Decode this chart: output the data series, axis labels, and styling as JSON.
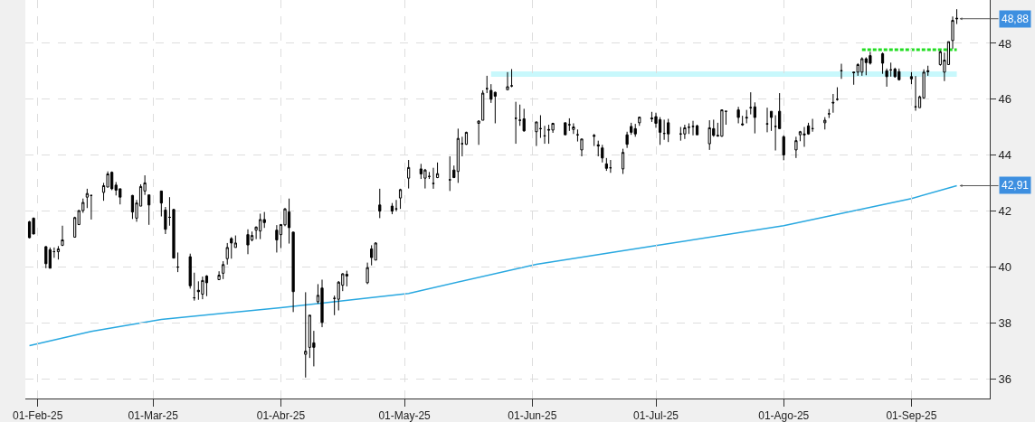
{
  "chart_data": {
    "type": "candlestick",
    "x": [
      "2025-01-30",
      "2025-01-31",
      "2025-02-03",
      "2025-02-04",
      "2025-02-05",
      "2025-02-06",
      "2025-02-07",
      "2025-02-10",
      "2025-02-11",
      "2025-02-12",
      "2025-02-13",
      "2025-02-14",
      "2025-02-17",
      "2025-02-18",
      "2025-02-19",
      "2025-02-20",
      "2025-02-21",
      "2025-02-24",
      "2025-02-25",
      "2025-02-26",
      "2025-02-27",
      "2025-02-28",
      "2025-03-03",
      "2025-03-04",
      "2025-03-05",
      "2025-03-06",
      "2025-03-07",
      "2025-03-10",
      "2025-03-11",
      "2025-03-12",
      "2025-03-13",
      "2025-03-14",
      "2025-03-17",
      "2025-03-18",
      "2025-03-19",
      "2025-03-20",
      "2025-03-21",
      "2025-03-24",
      "2025-03-25",
      "2025-03-26",
      "2025-03-27",
      "2025-03-28",
      "2025-03-31",
      "2025-04-01",
      "2025-04-02",
      "2025-04-03",
      "2025-04-04",
      "2025-04-07",
      "2025-04-08",
      "2025-04-09",
      "2025-04-10",
      "2025-04-11",
      "2025-04-14",
      "2025-04-15",
      "2025-04-16",
      "2025-04-17",
      "2025-04-22",
      "2025-04-23",
      "2025-04-24",
      "2025-04-25",
      "2025-04-28",
      "2025-04-29",
      "2025-04-30",
      "2025-05-02",
      "2025-05-05",
      "2025-05-06",
      "2025-05-07",
      "2025-05-08",
      "2025-05-09",
      "2025-05-12",
      "2025-05-13",
      "2025-05-14",
      "2025-05-15",
      "2025-05-16",
      "2025-05-19",
      "2025-05-20",
      "2025-05-21",
      "2025-05-22",
      "2025-05-23",
      "2025-05-26",
      "2025-05-27",
      "2025-05-28",
      "2025-05-29",
      "2025-05-30",
      "2025-06-02",
      "2025-06-03",
      "2025-06-04",
      "2025-06-05",
      "2025-06-06",
      "2025-06-09",
      "2025-06-10",
      "2025-06-11",
      "2025-06-12",
      "2025-06-13",
      "2025-06-16",
      "2025-06-17",
      "2025-06-18",
      "2025-06-19",
      "2025-06-20",
      "2025-06-23",
      "2025-06-24",
      "2025-06-25",
      "2025-06-26",
      "2025-06-27",
      "2025-06-30",
      "2025-07-01",
      "2025-07-02",
      "2025-07-03",
      "2025-07-04",
      "2025-07-07",
      "2025-07-08",
      "2025-07-09",
      "2025-07-10",
      "2025-07-11",
      "2025-07-14",
      "2025-07-15",
      "2025-07-16",
      "2025-07-17",
      "2025-07-18",
      "2025-07-21",
      "2025-07-22",
      "2025-07-23",
      "2025-07-24",
      "2025-07-25",
      "2025-07-28",
      "2025-07-29",
      "2025-07-30",
      "2025-07-31",
      "2025-08-01",
      "2025-08-04",
      "2025-08-05",
      "2025-08-06",
      "2025-08-07",
      "2025-08-08",
      "2025-08-11",
      "2025-08-12",
      "2025-08-13",
      "2025-08-14",
      "2025-08-15",
      "2025-08-18",
      "2025-08-19",
      "2025-08-20",
      "2025-08-21",
      "2025-08-22",
      "2025-08-25",
      "2025-08-26",
      "2025-08-27",
      "2025-08-28",
      "2025-08-29",
      "2025-09-01",
      "2025-09-02",
      "2025-09-03",
      "2025-09-04",
      "2025-09-05",
      "2025-09-08",
      "2025-09-09",
      "2025-09-10",
      "2025-09-11",
      "2025-09-12"
    ],
    "ohlc": [
      [
        41.62,
        41.65,
        41.03,
        41.05
      ],
      [
        41.75,
        41.77,
        41.18,
        41.18
      ],
      [
        40.73,
        40.75,
        39.96,
        40.12
      ],
      [
        40.62,
        40.7,
        39.96,
        39.96
      ],
      [
        40.55,
        40.7,
        40.33,
        40.55
      ],
      [
        40.55,
        40.75,
        40.27,
        40.65
      ],
      [
        40.78,
        41.48,
        40.75,
        40.97
      ],
      [
        41.07,
        41.8,
        41.05,
        41.77
      ],
      [
        41.52,
        42.04,
        41.5,
        42.02
      ],
      [
        42.02,
        42.45,
        41.94,
        42.31
      ],
      [
        42.5,
        42.8,
        42.11,
        42.63
      ],
      [
        42.56,
        42.58,
        41.7,
        42.56
      ],
      [
        42.67,
        43.01,
        42.37,
        42.91
      ],
      [
        42.86,
        43.42,
        42.86,
        43.33
      ],
      [
        43.39,
        43.42,
        42.75,
        42.8
      ],
      [
        42.93,
        43.04,
        42.56,
        42.75
      ],
      [
        42.8,
        42.8,
        42.24,
        42.5
      ],
      [
        42.56,
        42.58,
        41.72,
        41.97
      ],
      [
        41.75,
        42.4,
        41.62,
        42.29
      ],
      [
        42.18,
        42.96,
        42.18,
        42.88
      ],
      [
        42.72,
        43.28,
        42.58,
        43.01
      ],
      [
        42.58,
        42.58,
        41.51,
        42.22
      ],
      [
        42.72,
        42.72,
        41.81,
        42.29
      ],
      [
        42.04,
        42.15,
        41.18,
        41.35
      ],
      [
        41.78,
        42.5,
        41.48,
        41.78
      ],
      [
        42.06,
        42.08,
        40.32,
        40.32
      ],
      [
        40.0,
        40.52,
        39.82,
        40.0
      ],
      [
        40.37,
        40.48,
        39.23,
        39.33
      ],
      [
        38.9,
        39.8,
        38.8,
        38.9
      ],
      [
        39.17,
        39.49,
        38.83,
        39.12
      ],
      [
        39.03,
        39.66,
        38.85,
        39.52
      ],
      [
        39.68,
        39.71,
        38.96,
        39.44
      ],
      [
        39.55,
        39.85,
        39.55,
        39.71
      ],
      [
        39.78,
        40.21,
        39.57,
        40.09
      ],
      [
        40.3,
        40.86,
        40.09,
        40.7
      ],
      [
        41.02,
        41.07,
        40.3,
        40.86
      ],
      [
        40.7,
        41.13,
        40.7,
        40.86
      ],
      [
        41.16,
        41.35,
        40.46,
        40.79
      ],
      [
        40.97,
        41.27,
        40.92,
        41.13
      ],
      [
        41.32,
        41.45,
        41.0,
        41.43
      ],
      [
        41.29,
        41.91,
        41.0,
        41.7
      ],
      [
        41.7,
        41.97,
        41.4,
        41.59
      ],
      [
        41.32,
        41.5,
        40.52,
        40.97
      ],
      [
        41.16,
        41.54,
        40.68,
        41.52
      ],
      [
        41.51,
        42.11,
        41.46,
        42.08
      ],
      [
        41.97,
        42.45,
        40.84,
        41.41
      ],
      [
        41.25,
        41.25,
        38.39,
        39.12
      ],
      [
        36.88,
        39.1,
        36.05,
        36.99
      ],
      [
        37.13,
        38.28,
        36.75,
        38.28
      ],
      [
        37.29,
        37.72,
        36.45,
        37.13
      ],
      [
        38.76,
        39.39,
        38.69,
        38.99
      ],
      [
        39.25,
        39.55,
        37.85,
        38.02
      ],
      [
        38.88,
        38.98,
        38.28,
        38.88
      ],
      [
        38.85,
        39.5,
        38.45,
        39.46
      ],
      [
        39.35,
        39.78,
        39.14,
        39.76
      ],
      [
        39.74,
        39.87,
        39.31,
        39.68
      ],
      [
        39.44,
        40.16,
        39.39,
        39.98
      ],
      [
        40.65,
        40.78,
        40.06,
        40.34
      ],
      [
        40.25,
        40.89,
        40.25,
        40.86
      ],
      [
        42.22,
        42.8,
        41.75,
        42.0
      ],
      [
        42.18,
        42.29,
        41.89,
        42.0
      ],
      [
        42.08,
        42.4,
        41.99,
        42.08
      ],
      [
        42.47,
        42.8,
        42.08,
        42.77
      ],
      [
        43.18,
        43.83,
        42.81,
        43.56
      ],
      [
        43.51,
        43.69,
        43.15,
        43.33
      ],
      [
        43.18,
        43.51,
        42.81,
        43.47
      ],
      [
        43.24,
        43.4,
        43.15,
        43.24
      ],
      [
        42.99,
        43.55,
        42.8,
        42.99
      ],
      [
        43.2,
        43.74,
        43.18,
        43.34
      ],
      [
        43.12,
        43.96,
        42.72,
        43.12
      ],
      [
        43.47,
        43.63,
        43.18,
        43.2
      ],
      [
        43.42,
        44.95,
        43.01,
        44.6
      ],
      [
        44.41,
        44.66,
        43.96,
        44.41
      ],
      [
        44.39,
        44.84,
        44.37,
        44.82
      ],
      [
        45.14,
        45.25,
        44.37,
        45.22
      ],
      [
        45.25,
        46.32,
        45.25,
        46.22
      ],
      [
        46.38,
        46.84,
        46.22,
        46.38
      ],
      [
        46.32,
        46.54,
        45.87,
        46.0
      ],
      [
        46.25,
        46.27,
        45.14,
        46.11
      ],
      [
        46.34,
        46.97,
        46.34,
        46.45
      ],
      [
        46.48,
        47.08,
        46.43,
        46.48
      ],
      [
        45.32,
        45.91,
        44.41,
        45.32
      ],
      [
        45.25,
        45.81,
        45.05,
        45.25
      ],
      [
        45.3,
        45.66,
        44.84,
        44.87
      ],
      [
        44.84,
        45.19,
        44.33,
        45.19
      ],
      [
        44.95,
        45.43,
        44.62,
        44.95
      ],
      [
        44.69,
        45.05,
        44.41,
        44.69
      ],
      [
        44.92,
        45.09,
        44.41,
        44.9
      ],
      [
        44.9,
        45.16,
        44.8,
        45.14
      ],
      [
        45.16,
        45.16,
        44.73,
        44.73
      ],
      [
        45.09,
        45.32,
        44.87,
        45.09
      ],
      [
        44.92,
        45.14,
        44.76,
        45.01
      ],
      [
        44.73,
        44.92,
        44.49,
        44.73
      ],
      [
        44.19,
        44.58,
        43.96,
        44.58
      ],
      [
        44.71,
        44.76,
        44.33,
        44.68
      ],
      [
        44.37,
        44.52,
        43.96,
        44.33
      ],
      [
        44.26,
        44.37,
        43.74,
        43.9
      ],
      [
        43.69,
        43.9,
        43.44,
        43.53
      ],
      [
        43.55,
        43.83,
        43.37,
        43.55
      ],
      [
        43.51,
        44.23,
        43.33,
        44.1
      ],
      [
        44.73,
        44.84,
        44.26,
        44.39
      ],
      [
        45.03,
        45.16,
        44.73,
        44.82
      ],
      [
        44.95,
        45.12,
        44.66,
        44.76
      ],
      [
        45.16,
        45.38,
        45.05,
        45.36
      ],
      [
        45.33,
        45.55,
        45.19,
        45.3
      ],
      [
        45.38,
        45.52,
        44.98,
        45.14
      ],
      [
        45.27,
        45.36,
        44.37,
        44.82
      ],
      [
        44.78,
        45.27,
        44.55,
        44.78
      ],
      [
        45.16,
        45.3,
        44.47,
        44.76
      ],
      [
        44.76,
        45.01,
        44.52,
        44.76
      ],
      [
        44.76,
        45.09,
        44.58,
        44.98
      ],
      [
        45.0,
        45.14,
        44.76,
        45.0
      ],
      [
        45.03,
        45.23,
        44.71,
        45.03
      ],
      [
        45.05,
        45.09,
        44.73,
        44.73
      ],
      [
        44.41,
        45.25,
        44.19,
        44.98
      ],
      [
        44.95,
        45.27,
        44.66,
        44.71
      ],
      [
        44.71,
        45.16,
        44.66,
        44.69
      ],
      [
        44.68,
        45.62,
        44.66,
        45.62
      ],
      [
        45.57,
        45.57,
        45.09,
        45.57
      ],
      [
        45.62,
        45.73,
        45.14,
        45.35
      ],
      [
        45.12,
        45.41,
        45.05,
        45.09
      ],
      [
        45.33,
        45.62,
        45.14,
        45.35
      ],
      [
        45.7,
        46.25,
        45.46,
        45.7
      ],
      [
        45.73,
        45.89,
        44.78,
        45.35
      ],
      [
        45.12,
        45.7,
        44.82,
        45.12
      ],
      [
        45.57,
        45.57,
        44.87,
        45.35
      ],
      [
        45.03,
        45.43,
        44.17,
        45.03
      ],
      [
        45.57,
        46.22,
        44.95,
        44.95
      ],
      [
        44.66,
        44.71,
        43.82,
        44.01
      ],
      [
        44.19,
        44.66,
        43.9,
        44.52
      ],
      [
        44.73,
        44.87,
        44.5,
        44.84
      ],
      [
        44.76,
        45.01,
        44.3,
        44.73
      ],
      [
        45.05,
        45.16,
        44.73,
        44.76
      ],
      [
        44.95,
        45.3,
        44.84,
        44.95
      ],
      [
        45.16,
        45.36,
        44.92,
        45.25
      ],
      [
        45.48,
        45.65,
        45.33,
        45.48
      ],
      [
        45.89,
        46.19,
        45.52,
        45.87
      ],
      [
        46.0,
        46.43,
        45.95,
        46.0
      ],
      [
        47.02,
        47.27,
        46.73,
        47.02
      ],
      [
        46.97,
        46.99,
        46.52,
        46.95
      ],
      [
        46.97,
        47.29,
        46.84,
        47.24
      ],
      [
        46.97,
        47.5,
        46.84,
        47.45
      ],
      [
        47.45,
        47.5,
        46.86,
        47.31
      ],
      [
        47.56,
        47.7,
        47.24,
        47.29
      ],
      [
        47.63,
        47.67,
        46.91,
        47.29
      ],
      [
        47.02,
        47.1,
        46.45,
        46.81
      ],
      [
        47.05,
        47.31,
        46.81,
        47.05
      ],
      [
        47.08,
        47.13,
        46.77,
        46.81
      ],
      [
        46.99,
        47.1,
        46.67,
        46.7
      ],
      [
        46.81,
        46.97,
        46.54,
        46.73
      ],
      [
        45.73,
        46.83,
        45.59,
        45.73
      ],
      [
        45.7,
        46.13,
        45.7,
        46.09
      ],
      [
        46.05,
        47.07,
        46.02,
        46.97
      ],
      [
        47.02,
        47.2,
        46.84,
        46.99
      ],
      [
        47.24,
        47.74,
        47.2,
        47.7
      ],
      [
        46.97,
        47.67,
        46.65,
        47.4
      ],
      [
        47.24,
        48.06,
        47.24,
        48.06
      ],
      [
        48.1,
        48.96,
        47.81,
        48.82
      ],
      [
        48.9,
        49.22,
        48.69,
        48.88
      ]
    ],
    "color": "#000000",
    "series": [
      {
        "type": "line",
        "color": "#29a8e0",
        "x": [
          "2025-01-30",
          "2025-02-14",
          "2025-03-03",
          "2025-04-01",
          "2025-05-02",
          "2025-06-02",
          "2025-07-01",
          "2025-08-01",
          "2025-09-01",
          "2025-09-12"
        ],
        "values": [
          37.19,
          37.7,
          38.13,
          38.55,
          39.06,
          40.1,
          40.77,
          41.48,
          42.45,
          42.91
        ]
      },
      {
        "type": "line",
        "color": "#c8f8fc",
        "x": [
          "2025-05-22",
          "2025-09-12"
        ],
        "values": [
          46.9,
          46.9
        ]
      },
      {
        "type": "line",
        "color": "#22dd22",
        "line_style": "dashed",
        "x": [
          "2025-08-20",
          "2025-09-12"
        ],
        "values": [
          47.77,
          47.77
        ]
      }
    ],
    "annotations": [
      {
        "text": "48,88",
        "x": "2025-09-12",
        "y": 48.88
      },
      {
        "text": "42,91",
        "x": "2025-09-12",
        "y": 42.91
      }
    ],
    "xlim": [
      "2025-01-29",
      "2025-09-20"
    ],
    "xticks": [
      {
        "value": "2025-02-01",
        "label": "01-Feb-25"
      },
      {
        "value": "2025-03-01",
        "label": "01-Mar-25"
      },
      {
        "value": "2025-04-01",
        "label": "01-Abr-25"
      },
      {
        "value": "2025-05-01",
        "label": "01-May-25"
      },
      {
        "value": "2025-06-01",
        "label": "01-Jun-25"
      },
      {
        "value": "2025-07-01",
        "label": "01-Jul-25"
      },
      {
        "value": "2025-08-01",
        "label": "01-Ago-25"
      },
      {
        "value": "2025-09-01",
        "label": "01-Sep-25"
      }
    ],
    "ylim": [
      35.3,
      49.55
    ],
    "yticks": [
      36,
      38,
      40,
      42,
      44,
      46,
      48
    ],
    "grid": true
  }
}
